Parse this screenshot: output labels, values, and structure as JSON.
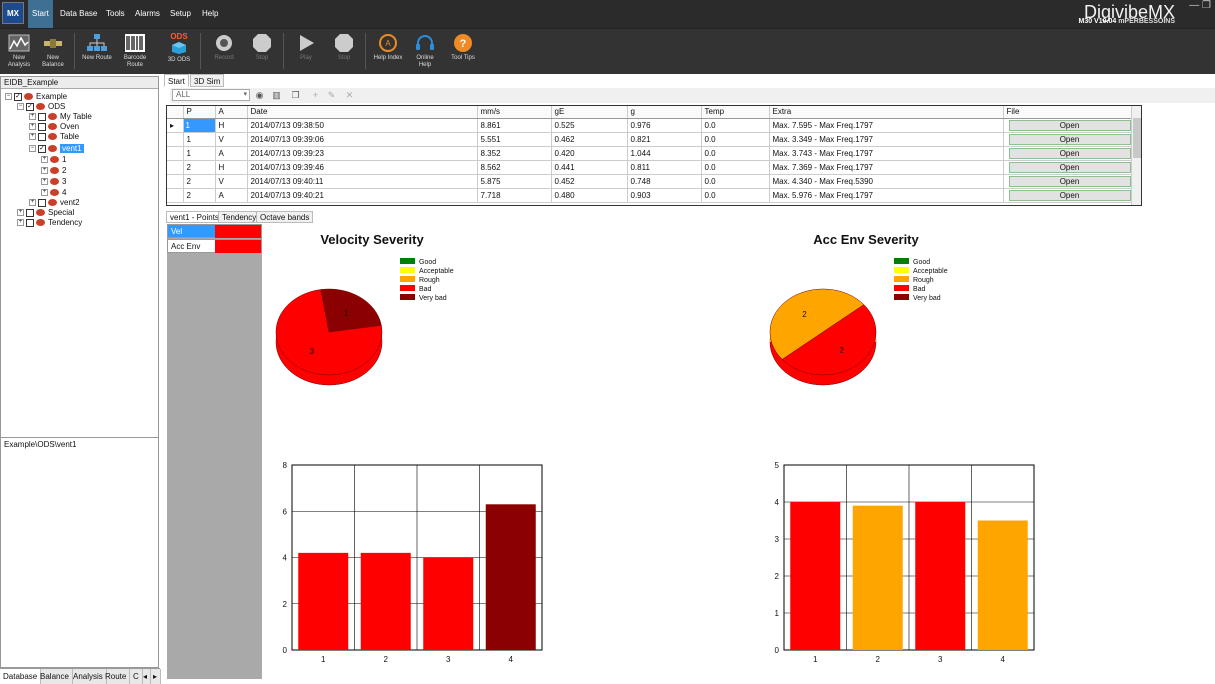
{
  "app": {
    "brand": "DigivibeMX",
    "version": "M30 V10.04",
    "vendor": "mPERBESSOINS"
  },
  "menu": [
    "Start",
    "Data Base",
    "Tools",
    "Alarms",
    "Setup",
    "Help"
  ],
  "toolbar": [
    {
      "label": "New\nAnalysis",
      "icon": "new-analysis-icon"
    },
    {
      "label": "New\nBalance",
      "icon": "new-balance-icon"
    },
    {
      "label": "New Route",
      "icon": "new-route-icon"
    },
    {
      "label": "Barcode\nRoute",
      "icon": "barcode-icon"
    },
    {
      "label": "3D ODS",
      "icon": "ods-3d-icon"
    },
    {
      "label": "Record",
      "icon": "record-icon"
    },
    {
      "label": "Stop",
      "icon": "stop-icon"
    },
    {
      "label": "Play",
      "icon": "play-icon"
    },
    {
      "label": "Stop",
      "icon": "stop-icon"
    },
    {
      "label": "Help Index",
      "icon": "help-index-icon"
    },
    {
      "label": "Online\nHelp",
      "icon": "headset-icon"
    },
    {
      "label": "Tool Tips",
      "icon": "tooltip-icon"
    }
  ],
  "ods_badge": "ODS",
  "db_title": "EIDB_Example",
  "tree": [
    {
      "label": "Example",
      "level": 0
    },
    {
      "label": "ODS",
      "level": 1
    },
    {
      "label": "My Table",
      "level": 2
    },
    {
      "label": "Oven",
      "level": 2
    },
    {
      "label": "Table",
      "level": 2
    },
    {
      "label": "vent1",
      "level": 2
    },
    {
      "label": "1",
      "level": 3
    },
    {
      "label": "2",
      "level": 3
    },
    {
      "label": "3",
      "level": 3
    },
    {
      "label": "4",
      "level": 3
    },
    {
      "label": "vent2",
      "level": 2
    },
    {
      "label": "Special",
      "level": 1
    },
    {
      "label": "Tendency",
      "level": 1
    }
  ],
  "path": "Example\\ODS\\vent1",
  "bottom_tabs": [
    "Database",
    "Balance",
    "Analysis",
    "Route",
    "C"
  ],
  "top_tabs": [
    "Start",
    "3D Sim"
  ],
  "filter_value": "ALL",
  "grid": {
    "columns": [
      "",
      "P",
      "A",
      "Date",
      "mm/s",
      "gE",
      "g",
      "Temp",
      "Extra",
      "File"
    ],
    "rows": [
      [
        "▸",
        "1",
        "H",
        "2014/07/13 09:38:50",
        "8.861",
        "0.525",
        "0.976",
        "0.0",
        "Max. 7.595 - Max Freq.1797",
        "Open"
      ],
      [
        "",
        "1",
        "V",
        "2014/07/13 09:39:06",
        "5.551",
        "0.462",
        "0.821",
        "0.0",
        "Max. 3.349 - Max Freq.1797",
        "Open"
      ],
      [
        "",
        "1",
        "A",
        "2014/07/13 09:39:23",
        "8.352",
        "0.420",
        "1.044",
        "0.0",
        "Max. 3.743 - Max Freq.1797",
        "Open"
      ],
      [
        "",
        "2",
        "H",
        "2014/07/13 09:39:46",
        "8.562",
        "0.441",
        "0.811",
        "0.0",
        "Max. 7.369 - Max Freq.1797",
        "Open"
      ],
      [
        "",
        "2",
        "V",
        "2014/07/13 09:40:11",
        "5.875",
        "0.452",
        "0.748",
        "0.0",
        "Max. 4.340 - Max Freq.5390",
        "Open"
      ],
      [
        "",
        "2",
        "A",
        "2014/07/13 09:40:21",
        "7.718",
        "0.480",
        "0.903",
        "0.0",
        "Max. 5.976 - Max Freq.1797",
        "Open"
      ]
    ]
  },
  "chart_tabs": [
    "vent1 - Points",
    "Tendency",
    "Octave bands"
  ],
  "swatches": [
    {
      "label": "Vel",
      "color": "#ff0000"
    },
    {
      "label": "Acc Env",
      "color": "#ff0000"
    }
  ],
  "legend": [
    {
      "label": "Good",
      "color": "#008000"
    },
    {
      "label": "Acceptable",
      "color": "#ffff00"
    },
    {
      "label": "Rough",
      "color": "#ffa500"
    },
    {
      "label": "Bad",
      "color": "#ff0000"
    },
    {
      "label": "Very bad",
      "color": "#8b0000"
    }
  ],
  "chart_data": [
    {
      "type": "pie",
      "title": "Velocity Severity",
      "slices": [
        {
          "name": "Bad",
          "value": 3,
          "label": "3",
          "color": "#ff0000"
        },
        {
          "name": "Very bad",
          "value": 1,
          "label": "1",
          "color": "#8b0000"
        }
      ]
    },
    {
      "type": "pie",
      "title": "Acc Env Severity",
      "slices": [
        {
          "name": "Bad",
          "value": 2,
          "label": "2",
          "color": "#ff0000"
        },
        {
          "name": "Rough",
          "value": 2,
          "label": "2",
          "color": "#ffa500"
        }
      ]
    },
    {
      "type": "bar",
      "categories": [
        "1",
        "2",
        "3",
        "4"
      ],
      "values": [
        4.2,
        4.2,
        4.0,
        6.3
      ],
      "colors": [
        "#ff0000",
        "#ff0000",
        "#ff0000",
        "#8b0000"
      ],
      "ylim": [
        0,
        8
      ],
      "yticks": [
        0,
        2,
        4,
        6,
        8
      ],
      "grid": true
    },
    {
      "type": "bar",
      "categories": [
        "1",
        "2",
        "3",
        "4"
      ],
      "values": [
        4.0,
        3.9,
        4.0,
        3.5
      ],
      "colors": [
        "#ff0000",
        "#ffa500",
        "#ff0000",
        "#ffa500"
      ],
      "ylim": [
        0,
        5
      ],
      "yticks": [
        0,
        1,
        2,
        3,
        4,
        5
      ],
      "grid": true
    }
  ]
}
